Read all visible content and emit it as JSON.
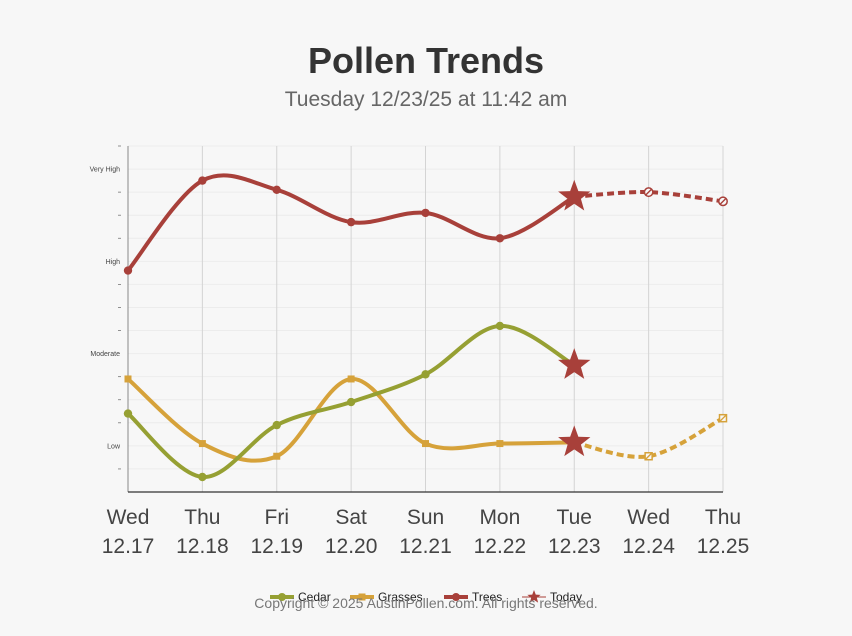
{
  "header": {
    "title": "Pollen Trends",
    "subtitle": "Tuesday 12/23/25 at 11:42 am"
  },
  "footer": {
    "copyright": "Copyright © 2025 AustinPollen.com.  All rights reserved."
  },
  "colors": {
    "cedar": "#96a033",
    "grasses": "#d6a23a",
    "trees": "#a8403a",
    "today": "#a8403a",
    "grid": "#d4d4d4"
  },
  "chart_data": {
    "type": "line",
    "title": "Pollen Trends",
    "subtitle": "Tuesday 12/23/25 at 11:42 am",
    "xlabel": "",
    "ylabel": "",
    "ylim": [
      0,
      15
    ],
    "y_labels": [
      {
        "value": 2,
        "label": "Low"
      },
      {
        "value": 6,
        "label": "Moderate"
      },
      {
        "value": 10,
        "label": "High"
      },
      {
        "value": 14,
        "label": "Very High"
      }
    ],
    "y_minor_ticks": [
      1,
      3,
      4,
      5,
      7,
      8,
      9,
      11,
      12,
      13,
      15
    ],
    "categories": [
      {
        "day": "Wed",
        "date": "12.17"
      },
      {
        "day": "Thu",
        "date": "12.18"
      },
      {
        "day": "Fri",
        "date": "12.19"
      },
      {
        "day": "Sat",
        "date": "12.20"
      },
      {
        "day": "Sun",
        "date": "12.21"
      },
      {
        "day": "Mon",
        "date": "12.22"
      },
      {
        "day": "Tue",
        "date": "12.23"
      },
      {
        "day": "Wed",
        "date": "12.24"
      },
      {
        "day": "Thu",
        "date": "12.25"
      }
    ],
    "today_index": 6,
    "series": [
      {
        "name": "Cedar",
        "key": "cedar",
        "marker": "circle",
        "values": [
          3.4,
          0.65,
          2.9,
          3.9,
          5.1,
          7.2,
          5.5,
          null,
          null
        ],
        "forecast_from": null
      },
      {
        "name": "Grasses",
        "key": "grasses",
        "marker": "square",
        "values": [
          4.9,
          2.1,
          1.55,
          4.9,
          2.1,
          2.1,
          2.15,
          1.55,
          3.2
        ],
        "forecast_from": 6
      },
      {
        "name": "Trees",
        "key": "trees",
        "marker": "circle",
        "values": [
          9.6,
          13.5,
          13.1,
          11.7,
          12.1,
          11.0,
          12.8,
          13.0,
          12.6
        ],
        "forecast_from": 6
      }
    ],
    "legend": [
      {
        "name": "Cedar",
        "key": "cedar"
      },
      {
        "name": "Grasses",
        "key": "grasses"
      },
      {
        "name": "Trees",
        "key": "trees"
      },
      {
        "name": "Today",
        "key": "today"
      }
    ],
    "legend_position": "bottom-center",
    "grid": true
  }
}
